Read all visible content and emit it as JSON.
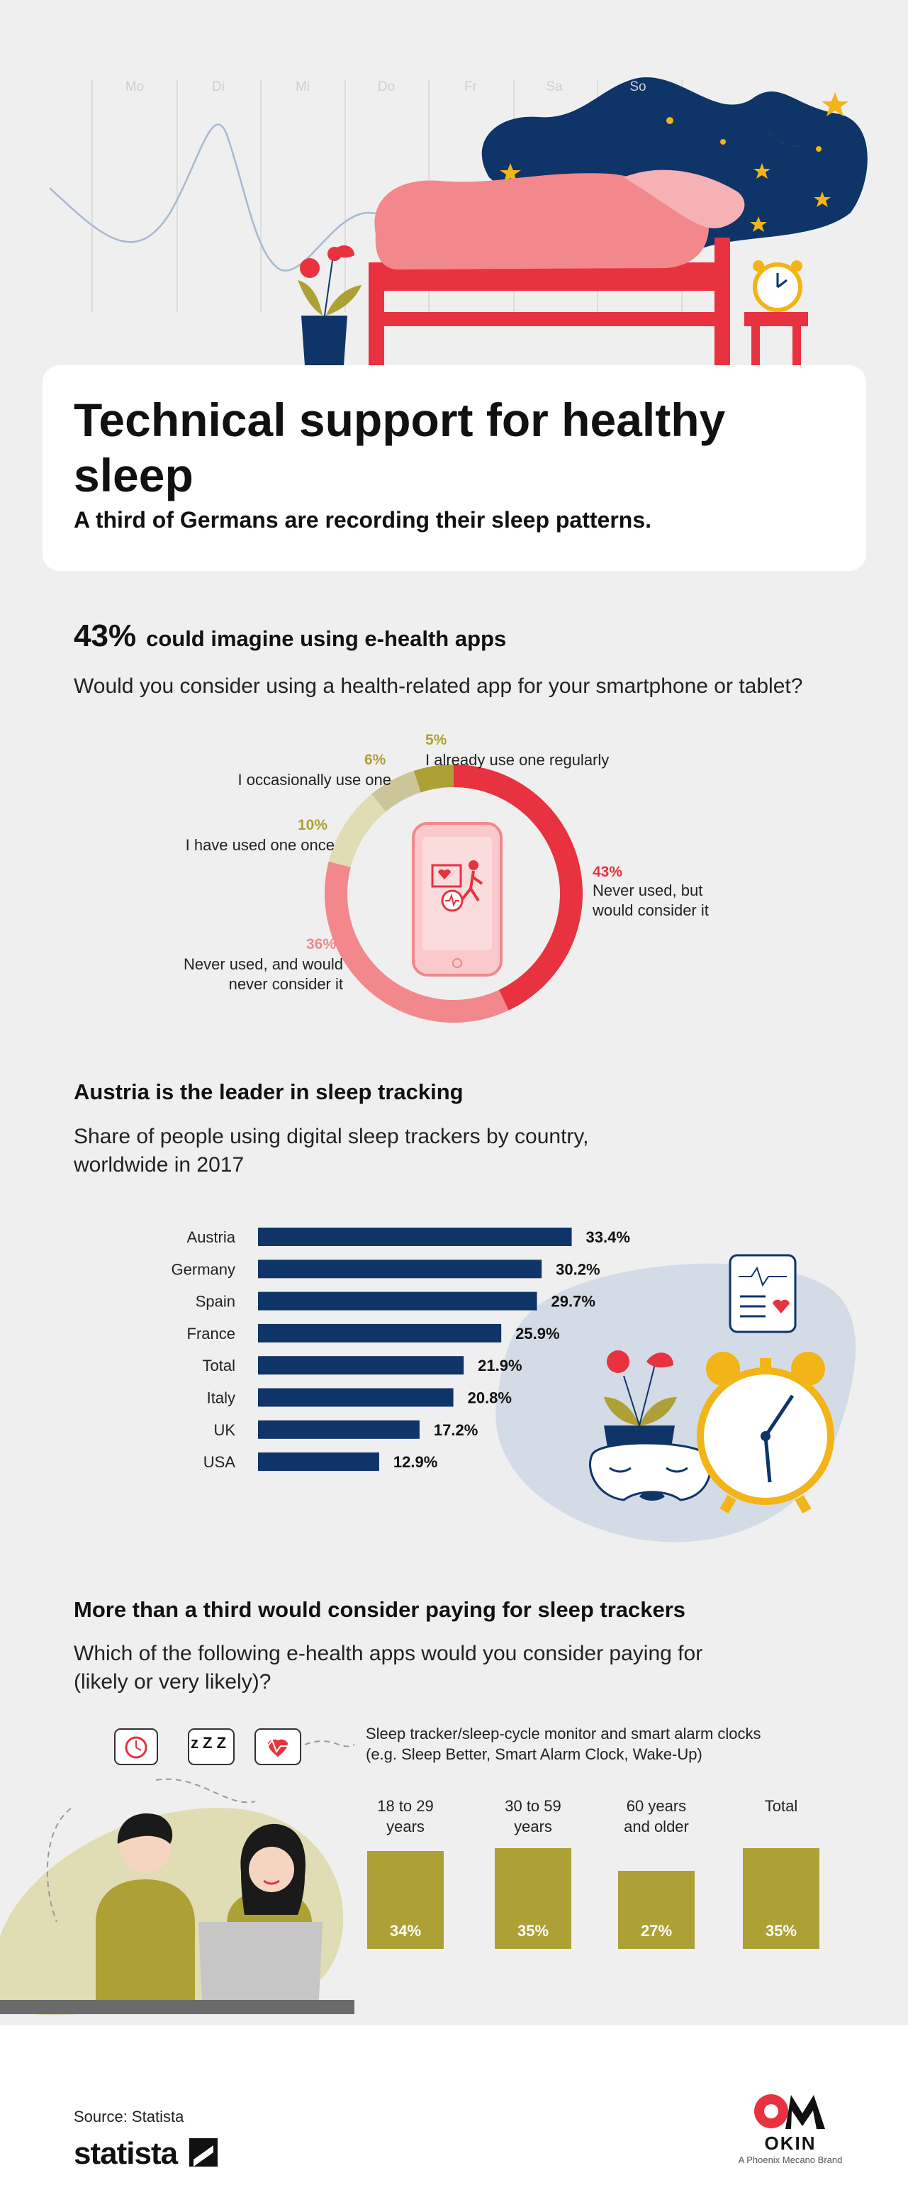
{
  "hero": {
    "days": [
      "Mo",
      "Di",
      "Mi",
      "Do",
      "Fr",
      "Sa",
      "So"
    ],
    "colors": {
      "bed": "#e8323f",
      "blanket": "#f2888c",
      "night": "#0e3468",
      "moon": "#f2b416",
      "plant": "#0e3468"
    }
  },
  "header": {
    "title": "Technical support for healthy sleep",
    "subtitle": "A third of Germans are recording their sleep patterns."
  },
  "section1": {
    "big_pct": "43%",
    "heading": "could imagine using e-health apps",
    "question": "Would you consider using a health-related app for your smartphone or tablet?"
  },
  "section2": {
    "heading": "Austria is the leader in sleep tracking",
    "question_line1": "Share of people using digital sleep trackers by country,",
    "question_line2": "worldwide in 2017"
  },
  "section3": {
    "heading": "More than a third would consider paying for sleep trackers",
    "question_line1": "Which of the following e-health apps would you consider paying for",
    "question_line2": "(likely or very likely)?",
    "chart_title_line1": "Sleep tracker/sleep-cycle monitor and smart alarm clocks",
    "chart_title_line2": "(e.g. Sleep Better, Smart Alarm Clock, Wake-Up)",
    "zzz": "z Z Z"
  },
  "chart_data": [
    {
      "type": "pie",
      "style": "donut",
      "slices": [
        {
          "label": "Never used, but would consider it",
          "value": 43,
          "display": "43%",
          "color": "#e8323f"
        },
        {
          "label": "Never used, and would never consider it",
          "value": 36,
          "display": "36%",
          "color": "#f2888c"
        },
        {
          "label": "I have used one once",
          "value": 10,
          "display": "10%",
          "color": "#e0dcb4"
        },
        {
          "label": "I occasionally use one",
          "value": 6,
          "display": "6%",
          "color": "#cdc59a"
        },
        {
          "label": "I already use one regularly",
          "value": 5,
          "display": "5%",
          "color": "#ada035"
        }
      ]
    },
    {
      "type": "bar",
      "orientation": "horizontal",
      "categories": [
        "Austria",
        "Germany",
        "Spain",
        "France",
        "Total",
        "Italy",
        "UK",
        "USA"
      ],
      "values": [
        33.4,
        30.2,
        29.7,
        25.9,
        21.9,
        20.8,
        17.2,
        12.9
      ],
      "display": [
        "33.4%",
        "30.2%",
        "29.7%",
        "25.9%",
        "21.9%",
        "20.8%",
        "17.2%",
        "12.9%"
      ],
      "color": "#0e3468"
    },
    {
      "type": "bar",
      "categories": [
        "18 to 29 years",
        "30 to 59 years",
        "60 years and older",
        "Total"
      ],
      "category_lines": [
        [
          "18 to 29",
          "years"
        ],
        [
          "30 to 59",
          "years"
        ],
        [
          "60 years",
          "and older"
        ],
        [
          "Total"
        ]
      ],
      "values": [
        34,
        35,
        27,
        35
      ],
      "display": [
        "34%",
        "35%",
        "27%",
        "35%"
      ],
      "color": "#ada035"
    }
  ],
  "footer": {
    "source": "Source: Statista",
    "statista_logo": "statista",
    "okin_logo": "OKIN",
    "okin_tagline": "A Phoenix Mecano Brand"
  }
}
